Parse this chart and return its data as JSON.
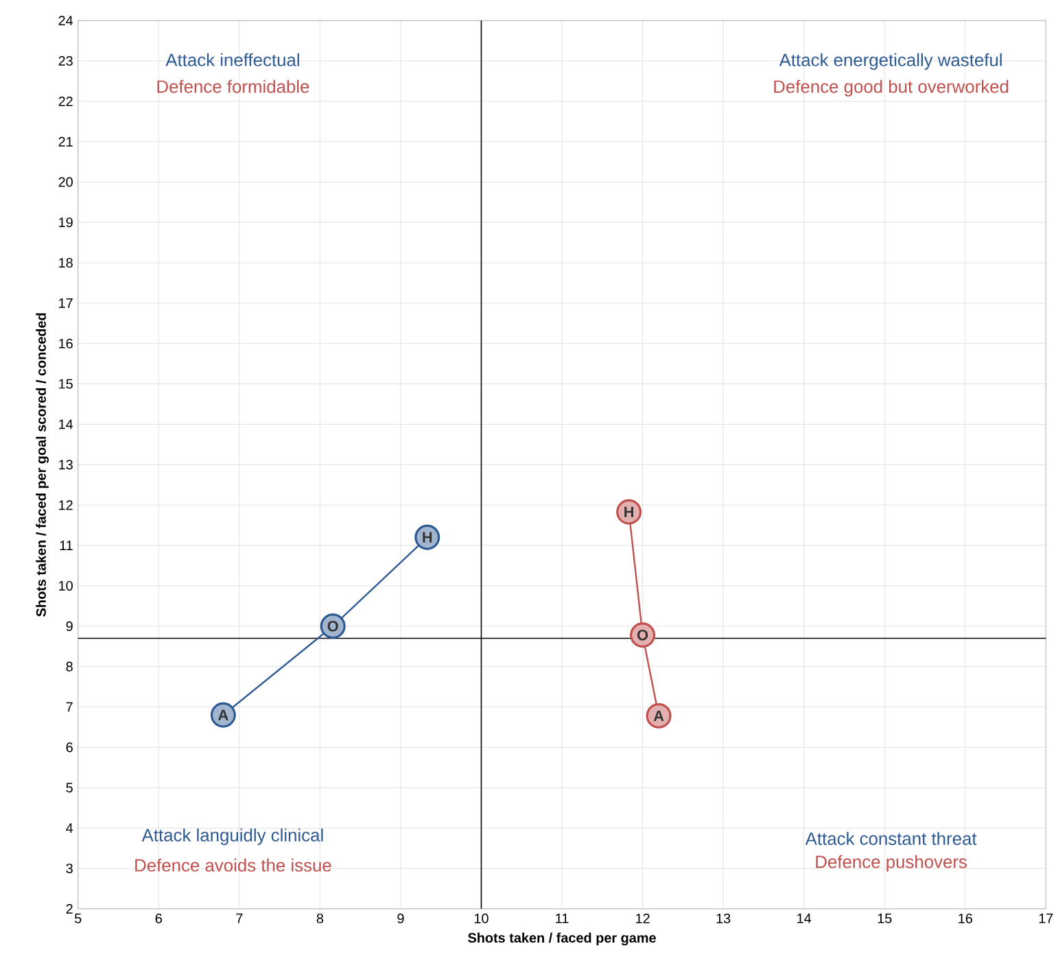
{
  "chart_data": {
    "type": "line",
    "xlabel": "Shots taken / faced per game",
    "ylabel": "Shots taken / faced per goal scored / conceded",
    "xlim": [
      5,
      17
    ],
    "xticks": [
      5,
      6,
      7,
      8,
      9,
      10,
      11,
      12,
      13,
      14,
      15,
      16,
      17
    ],
    "ylim": [
      2,
      24
    ],
    "yticks": [
      2,
      3,
      4,
      5,
      6,
      7,
      8,
      9,
      10,
      11,
      12,
      13,
      14,
      15,
      16,
      17,
      18,
      19,
      20,
      21,
      22,
      23,
      24
    ],
    "grid": true,
    "marker": "circle",
    "line_style": "solid",
    "series": [
      {
        "color": "#2e5a93",
        "x": [
          6.8,
          8.16,
          9.33
        ],
        "values": [
          6.8,
          9.0,
          11.2
        ]
      },
      {
        "color": "#c0504d",
        "x": [
          12.2,
          12.0,
          11.83
        ],
        "values": [
          6.78,
          8.78,
          11.83
        ]
      }
    ],
    "ref_lines": [
      {
        "axis": "x",
        "value": 10,
        "color": "#000000"
      },
      {
        "axis": "y",
        "value": 8.7,
        "color": "#000000"
      }
    ],
    "annotations": [
      {
        "text": "A",
        "x": 6.8,
        "y": 6.8
      },
      {
        "text": "O",
        "x": 8.16,
        "y": 9.0
      },
      {
        "text": "H",
        "x": 9.33,
        "y": 11.2
      },
      {
        "text": "A",
        "x": 12.2,
        "y": 6.78
      },
      {
        "text": "O",
        "x": 12.0,
        "y": 8.78
      },
      {
        "text": "H",
        "x": 11.83,
        "y": 11.83
      },
      "Attack ineffectual",
      "Defence formidable",
      "Attack energetically wasteful",
      "Defence good but overworked",
      "Attack languidly clinical",
      "Defence avoids the issue",
      "Attack constant threat",
      "Defence pushovers"
    ]
  }
}
